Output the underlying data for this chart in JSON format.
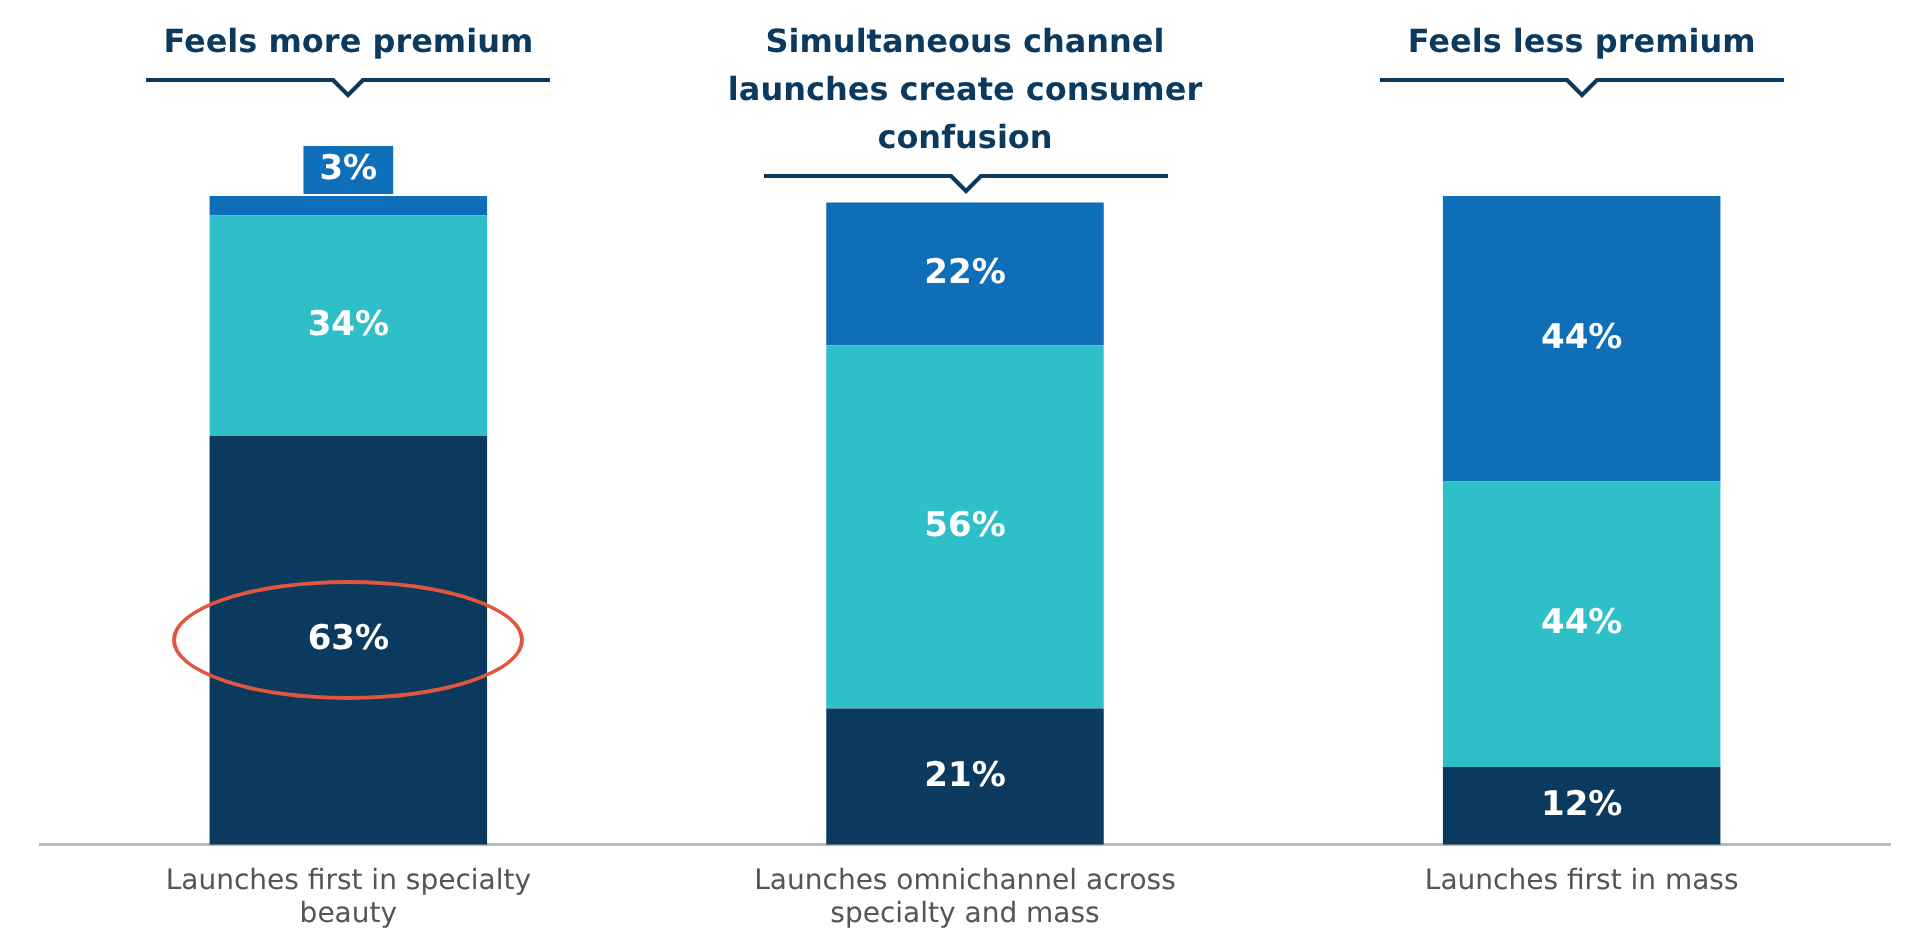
{
  "chart_data": {
    "type": "bar",
    "stacked": true,
    "categories": [
      "Launches first in specialty beauty",
      "Launches omnichannel across specialty and mass",
      "Launches first in mass"
    ],
    "series": [
      {
        "color": "#0b3a5e",
        "values": [
          63,
          21,
          12
        ],
        "value_labels": [
          "63%",
          "21%",
          "12%"
        ]
      },
      {
        "color": "#2ebfc9",
        "values": [
          34,
          56,
          44
        ],
        "value_labels": [
          "34%",
          "56%",
          "44%"
        ]
      },
      {
        "color": "#0e6eb8",
        "values": [
          3,
          22,
          44
        ],
        "value_labels": [
          "3%",
          "22%",
          "44%"
        ]
      }
    ],
    "annotations": [
      "Feels more premium",
      "Simultaneous channel launches create consumer confusion",
      "Feels less premium"
    ],
    "grid": false,
    "legend": false
  }
}
